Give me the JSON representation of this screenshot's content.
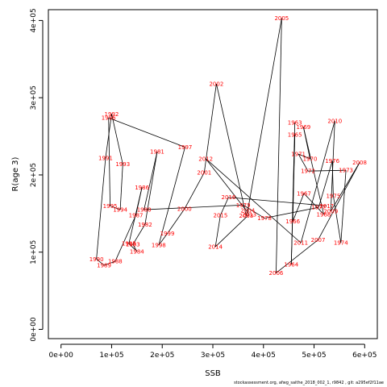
{
  "chart_data": {
    "type": "line",
    "title": "",
    "xlabel": "SSB",
    "ylabel": "R(age 3)",
    "xlim": [
      -25000,
      625000
    ],
    "ylim": [
      -12000,
      414000
    ],
    "x_ticks": [
      0,
      100000,
      200000,
      300000,
      400000,
      500000,
      600000
    ],
    "x_tick_labels": [
      "0e+00",
      "1e+05",
      "2e+05",
      "3e+05",
      "4e+05",
      "5e+05",
      "6e+05"
    ],
    "y_ticks": [
      0,
      100000,
      200000,
      300000,
      400000
    ],
    "y_tick_labels": [
      "0e+00",
      "1e+05",
      "2e+05",
      "3e+05",
      "4e+05"
    ],
    "grid": false,
    "line_color": "#000000",
    "label_color": "#ff0000",
    "series": [
      {
        "points": [
          {
            "year": "1963",
            "x": 462000,
            "y": 268000
          },
          {
            "year": "1964",
            "x": 455000,
            "y": 84000
          },
          {
            "year": "1965",
            "x": 462000,
            "y": 252000
          },
          {
            "year": "1966",
            "x": 458000,
            "y": 140000
          },
          {
            "year": "1967",
            "x": 480000,
            "y": 176000
          },
          {
            "year": "1968",
            "x": 519000,
            "y": 149000
          },
          {
            "year": "1969",
            "x": 479000,
            "y": 262000
          },
          {
            "year": "1970",
            "x": 492000,
            "y": 221000
          },
          {
            "year": "1971",
            "x": 469000,
            "y": 227000
          },
          {
            "year": "1972",
            "x": 488000,
            "y": 205000
          },
          {
            "year": "1973",
            "x": 563000,
            "y": 206000
          },
          {
            "year": "1974",
            "x": 553000,
            "y": 112000
          },
          {
            "year": "1975",
            "x": 538000,
            "y": 173000
          },
          {
            "year": "1976",
            "x": 536000,
            "y": 218000
          },
          {
            "year": "1977",
            "x": 509000,
            "y": 158000
          },
          {
            "year": "1978",
            "x": 402000,
            "y": 144000
          },
          {
            "year": "1979",
            "x": 360000,
            "y": 161000
          },
          {
            "year": "1980",
            "x": 164000,
            "y": 155000
          },
          {
            "year": "1981",
            "x": 190000,
            "y": 230000
          },
          {
            "year": "1982",
            "x": 166000,
            "y": 136000
          },
          {
            "year": "1983",
            "x": 142000,
            "y": 110000
          },
          {
            "year": "1984",
            "x": 150000,
            "y": 101000
          },
          {
            "year": "1985",
            "x": 134000,
            "y": 111000
          },
          {
            "year": "1986",
            "x": 160000,
            "y": 184000
          },
          {
            "year": "1987",
            "x": 148000,
            "y": 148000
          },
          {
            "year": "1988",
            "x": 107000,
            "y": 88000
          },
          {
            "year": "1989",
            "x": 85000,
            "y": 83000
          },
          {
            "year": "1990",
            "x": 70000,
            "y": 91000
          },
          {
            "year": "1991",
            "x": 88000,
            "y": 222000
          },
          {
            "year": "1992",
            "x": 100000,
            "y": 279000
          },
          {
            "year": "1993",
            "x": 122000,
            "y": 214000
          },
          {
            "year": "1994",
            "x": 117000,
            "y": 155000
          },
          {
            "year": "1995",
            "x": 97000,
            "y": 160000
          },
          {
            "year": "1996",
            "x": 94000,
            "y": 274000
          },
          {
            "year": "1997",
            "x": 245000,
            "y": 236000
          },
          {
            "year": "1998",
            "x": 193000,
            "y": 109000
          },
          {
            "year": "1999",
            "x": 210000,
            "y": 124000
          },
          {
            "year": "2000",
            "x": 244000,
            "y": 156000
          },
          {
            "year": "2001",
            "x": 283000,
            "y": 203000
          },
          {
            "year": "2002",
            "x": 307000,
            "y": 318000
          },
          {
            "year": "2003",
            "x": 366000,
            "y": 147000
          },
          {
            "year": "2004",
            "x": 369000,
            "y": 154000
          },
          {
            "year": "2005",
            "x": 436000,
            "y": 403000
          },
          {
            "year": "2006",
            "x": 425000,
            "y": 73000
          },
          {
            "year": "2007",
            "x": 508000,
            "y": 116000
          },
          {
            "year": "2008",
            "x": 590000,
            "y": 216000
          },
          {
            "year": "2009",
            "x": 533000,
            "y": 153000
          },
          {
            "year": "2010",
            "x": 541000,
            "y": 270000
          },
          {
            "year": "2011",
            "x": 474000,
            "y": 112000
          },
          {
            "year": "2012",
            "x": 286000,
            "y": 221000
          },
          {
            "year": "2013",
            "x": 372000,
            "y": 149000
          },
          {
            "year": "2014",
            "x": 305000,
            "y": 107000
          },
          {
            "year": "2015",
            "x": 315000,
            "y": 148000
          },
          {
            "year": "2016",
            "x": 331000,
            "y": 171000
          },
          {
            "year": "2017",
            "x": 525000,
            "y": 160000
          }
        ]
      }
    ],
    "footnote": "stockassessment.org, afwg_saithe_2018_002_1, r9842 , git: a295ef2f11ae"
  }
}
